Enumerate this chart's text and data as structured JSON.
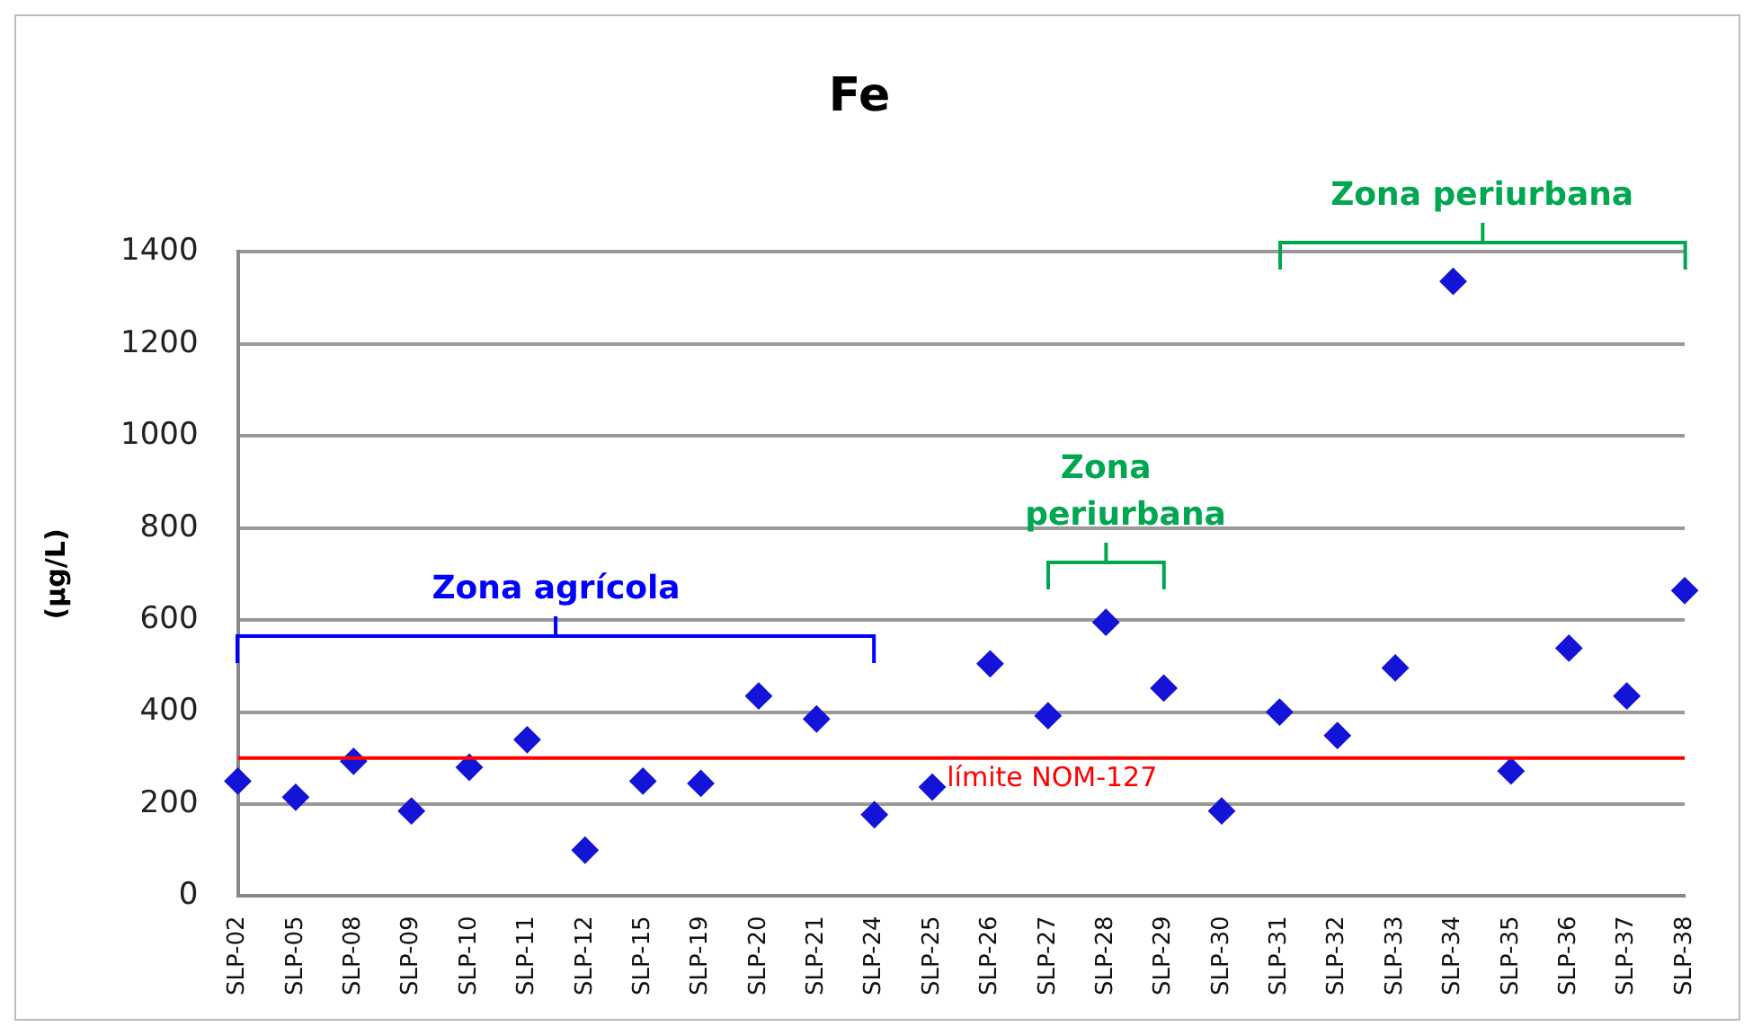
{
  "chart_data": {
    "type": "scatter",
    "title": "Fe",
    "ylabel": "(µg/L)",
    "categories": [
      "SLP-02",
      "SLP-05",
      "SLP-08",
      "SLP-09",
      "SLP-10",
      "SLP-11",
      "SLP-12",
      "SLP-15",
      "SLP-19",
      "SLP-20",
      "SLP-21",
      "SLP-24",
      "SLP-25",
      "SLP-26",
      "SLP-27",
      "SLP-28",
      "SLP-29",
      "SLP-30",
      "SLP-31",
      "SLP-32",
      "SLP-33",
      "SLP-34",
      "SLP-35",
      "SLP-36",
      "SLP-37",
      "SLP-38"
    ],
    "series": [
      {
        "color": "#1414d8",
        "values": [
          250,
          215,
          293,
          185,
          280,
          340,
          100,
          250,
          245,
          435,
          385,
          177,
          237,
          505,
          392,
          595,
          452,
          185,
          400,
          349,
          496,
          1336,
          272,
          539,
          435,
          664
        ]
      }
    ],
    "ylim": [
      0,
      1400
    ],
    "yticks": [
      0,
      200,
      400,
      600,
      800,
      1000,
      1200,
      1400
    ],
    "grid": "y",
    "legend": false,
    "marker": "diamond",
    "ref_lines": [
      {
        "axis": "y",
        "value": 300,
        "label": "límite NOM-127",
        "color": "#ff0000"
      }
    ],
    "annotations": [
      "Zona agrícola",
      "Zona periurbana",
      "Zona periurbana"
    ]
  }
}
